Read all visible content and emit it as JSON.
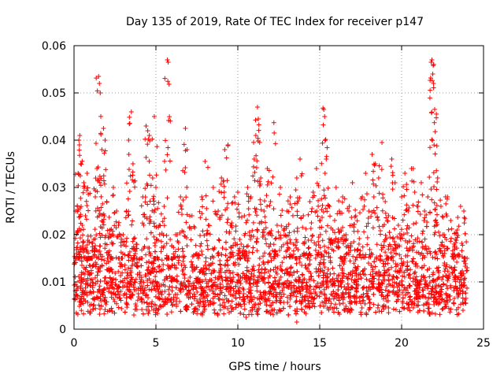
{
  "chart_data": {
    "type": "scatter",
    "title": "Day 135 of 2019, Rate Of TEC Index for receiver p147",
    "xlabel": "GPS time / hours",
    "ylabel": "ROTI / TECUs",
    "xlim": [
      0,
      25
    ],
    "ylim": [
      0,
      0.06
    ],
    "xticks": [
      0,
      5,
      10,
      15,
      20,
      25
    ],
    "yticks": [
      0,
      0.01,
      0.02,
      0.03,
      0.04,
      0.05,
      0.06
    ],
    "xtick_labels": [
      "0",
      "5",
      "10",
      "15",
      "20",
      "25"
    ],
    "ytick_labels": [
      "0",
      "0.01",
      "0.02",
      "0.03",
      "0.04",
      "0.05",
      "0.06"
    ],
    "grid": true,
    "marker": "plus",
    "color": "#ff0000",
    "data_x_range": [
      0,
      24
    ],
    "points": [
      [
        0.1,
        0.0095
      ],
      [
        0.15,
        0.016
      ],
      [
        0.2,
        0.026
      ],
      [
        0.25,
        0.033
      ],
      [
        0.3,
        0.04
      ],
      [
        0.35,
        0.041
      ],
      [
        0.4,
        0.035
      ],
      [
        0.5,
        0.022
      ],
      [
        0.6,
        0.031
      ],
      [
        0.7,
        0.024
      ],
      [
        0.8,
        0.033
      ],
      [
        0.9,
        0.012
      ],
      [
        1.0,
        0.008
      ],
      [
        1.2,
        0.019
      ],
      [
        1.3,
        0.028
      ],
      [
        1.4,
        0.034
      ],
      [
        1.5,
        0.0535
      ],
      [
        1.55,
        0.052
      ],
      [
        1.6,
        0.05
      ],
      [
        1.7,
        0.038
      ],
      [
        1.8,
        0.0425
      ],
      [
        1.9,
        0.04
      ],
      [
        2.0,
        0.027
      ],
      [
        2.2,
        0.021
      ],
      [
        2.4,
        0.03
      ],
      [
        2.6,
        0.025
      ],
      [
        2.8,
        0.014
      ],
      [
        3.0,
        0.02
      ],
      [
        3.2,
        0.025
      ],
      [
        3.35,
        0.037
      ],
      [
        3.5,
        0.046
      ],
      [
        3.6,
        0.035
      ],
      [
        3.8,
        0.018
      ],
      [
        4.0,
        0.012
      ],
      [
        4.2,
        0.028
      ],
      [
        4.4,
        0.043
      ],
      [
        4.5,
        0.042
      ],
      [
        4.6,
        0.041
      ],
      [
        4.8,
        0.032
      ],
      [
        4.9,
        0.045
      ],
      [
        5.0,
        0.03
      ],
      [
        5.2,
        0.022
      ],
      [
        5.5,
        0.026
      ],
      [
        5.7,
        0.057
      ],
      [
        5.75,
        0.0565
      ],
      [
        5.9,
        0.013
      ],
      [
        6.2,
        0.02
      ],
      [
        6.5,
        0.028
      ],
      [
        6.8,
        0.0425
      ],
      [
        6.9,
        0.038
      ],
      [
        7.2,
        0.024
      ],
      [
        7.5,
        0.016
      ],
      [
        7.8,
        0.028
      ],
      [
        8.0,
        0.0355
      ],
      [
        8.2,
        0.022
      ],
      [
        8.5,
        0.03
      ],
      [
        8.8,
        0.025
      ],
      [
        9.0,
        0.032
      ],
      [
        9.2,
        0.038
      ],
      [
        9.4,
        0.039
      ],
      [
        9.6,
        0.022
      ],
      [
        9.8,
        0.028
      ],
      [
        10.0,
        0.029
      ],
      [
        10.2,
        0.018
      ],
      [
        10.4,
        0.024
      ],
      [
        10.6,
        0.03
      ],
      [
        10.8,
        0.028
      ],
      [
        11.0,
        0.036
      ],
      [
        11.1,
        0.041
      ],
      [
        11.2,
        0.047
      ],
      [
        11.25,
        0.0445
      ],
      [
        11.4,
        0.032
      ],
      [
        11.6,
        0.025
      ],
      [
        11.8,
        0.034
      ],
      [
        12.0,
        0.027
      ],
      [
        12.2,
        0.0437
      ],
      [
        12.4,
        0.022
      ],
      [
        12.6,
        0.03
      ],
      [
        12.8,
        0.021
      ],
      [
        13.0,
        0.025
      ],
      [
        13.2,
        0.028
      ],
      [
        13.4,
        0.018
      ],
      [
        13.6,
        0.032
      ],
      [
        13.8,
        0.036
      ],
      [
        14.0,
        0.024
      ],
      [
        14.2,
        0.016
      ],
      [
        14.4,
        0.027
      ],
      [
        14.6,
        0.029
      ],
      [
        14.8,
        0.034
      ],
      [
        15.0,
        0.023
      ],
      [
        15.2,
        0.0468
      ],
      [
        15.25,
        0.0465
      ],
      [
        15.3,
        0.045
      ],
      [
        15.4,
        0.036
      ],
      [
        15.6,
        0.026
      ],
      [
        15.8,
        0.021
      ],
      [
        16.0,
        0.03
      ],
      [
        16.2,
        0.025
      ],
      [
        16.4,
        0.028
      ],
      [
        16.6,
        0.02
      ],
      [
        16.8,
        0.026
      ],
      [
        17.0,
        0.031
      ],
      [
        17.2,
        0.024
      ],
      [
        17.4,
        0.018
      ],
      [
        17.6,
        0.028
      ],
      [
        17.8,
        0.033
      ],
      [
        18.0,
        0.025
      ],
      [
        18.2,
        0.037
      ],
      [
        18.4,
        0.035
      ],
      [
        18.6,
        0.032
      ],
      [
        18.8,
        0.0395
      ],
      [
        19.0,
        0.027
      ],
      [
        19.2,
        0.024
      ],
      [
        19.4,
        0.036
      ],
      [
        19.6,
        0.031
      ],
      [
        19.8,
        0.022
      ],
      [
        20.0,
        0.028
      ],
      [
        20.2,
        0.033
      ],
      [
        20.4,
        0.025
      ],
      [
        20.6,
        0.034
      ],
      [
        20.8,
        0.029
      ],
      [
        21.0,
        0.026
      ],
      [
        21.2,
        0.031
      ],
      [
        21.4,
        0.025
      ],
      [
        21.6,
        0.028
      ],
      [
        21.8,
        0.0565
      ],
      [
        21.85,
        0.057
      ],
      [
        21.9,
        0.054
      ],
      [
        21.95,
        0.052
      ],
      [
        22.0,
        0.0437
      ],
      [
        22.05,
        0.0418
      ],
      [
        22.2,
        0.032
      ],
      [
        22.4,
        0.026
      ],
      [
        22.6,
        0.02
      ],
      [
        22.8,
        0.028
      ],
      [
        23.0,
        0.023
      ],
      [
        23.2,
        0.018
      ],
      [
        23.4,
        0.021
      ],
      [
        23.6,
        0.026
      ],
      [
        23.8,
        0.025
      ],
      [
        24.0,
        0.013
      ],
      [
        13.6,
        0.0015
      ],
      [
        10.5,
        0.0025
      ],
      [
        2.2,
        0.004
      ],
      [
        19.2,
        0.0045
      ],
      [
        5.0,
        0.004
      ],
      [
        16.5,
        0.004
      ]
    ],
    "dense_band": {
      "y_min": 0.003,
      "y_max": 0.015,
      "dense_y_mid": 0.009
    }
  }
}
